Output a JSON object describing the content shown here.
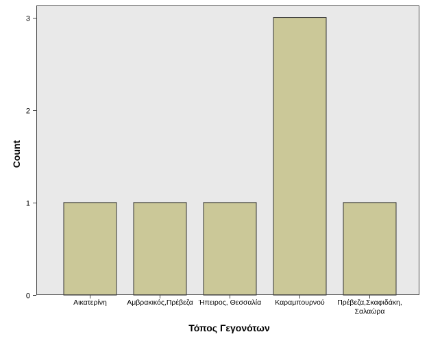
{
  "chart_data": {
    "type": "bar",
    "categories": [
      "Αικατερίνη",
      "Αμβρακικός,Πρέβεζα",
      "Ήπειρος, Θεσσαλία",
      "Καραμπουρνού",
      "Πρέβεζα,Σκαφιδάκη, Σαλαώρα"
    ],
    "values": [
      1,
      1,
      1,
      3,
      1
    ],
    "xlabel": "Τόπος Γεγονότων",
    "ylabel": "Count",
    "ylim": [
      0,
      3.13
    ],
    "yticks": [
      0,
      1,
      2,
      3
    ],
    "grid": false,
    "colors": {
      "bar_fill": "#cbc898",
      "bar_stroke": "#333333",
      "plot_background": "#e9e9e9",
      "axis": "#444444"
    }
  }
}
